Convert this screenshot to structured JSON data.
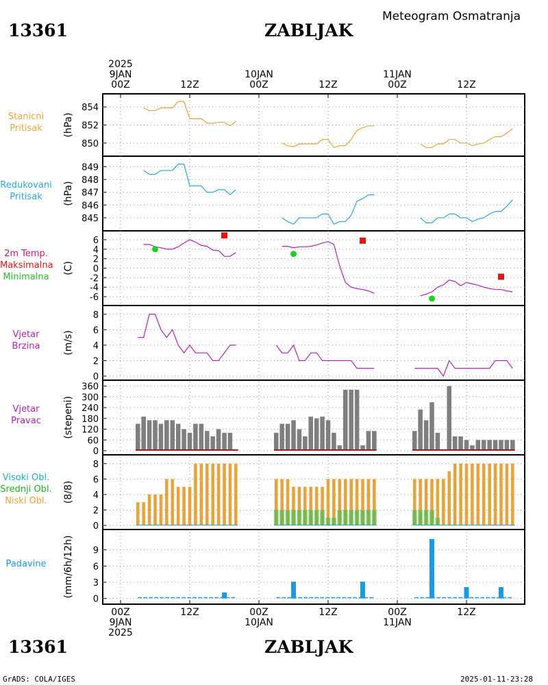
{
  "header": {
    "station_id": "13361",
    "station_name": "ZABLJAK",
    "title": "Meteogram Osmatranja"
  },
  "footer": {
    "station_id": "13361",
    "station_name": "ZABLJAK",
    "source": "GrADS: COLA/IGES",
    "timestamp": "2025-01-11-23:28"
  },
  "time_axis": {
    "top_labels": [
      {
        "t": 0,
        "lines": [
          "2025",
          "9JAN",
          "00Z"
        ]
      },
      {
        "t": 12,
        "lines": [
          "12Z"
        ]
      },
      {
        "t": 24,
        "lines": [
          "10JAN",
          "00Z"
        ]
      },
      {
        "t": 36,
        "lines": [
          "12Z"
        ]
      },
      {
        "t": 48,
        "lines": [
          "11JAN",
          "00Z"
        ]
      },
      {
        "t": 60,
        "lines": [
          "12Z"
        ]
      }
    ],
    "bottom_labels": [
      {
        "t": 0,
        "lines": [
          "00Z",
          "9JAN",
          "2025"
        ]
      },
      {
        "t": 12,
        "lines": [
          "12Z"
        ]
      },
      {
        "t": 24,
        "lines": [
          "00Z",
          "10JAN"
        ]
      },
      {
        "t": 36,
        "lines": [
          "12Z"
        ]
      },
      {
        "t": 48,
        "lines": [
          "00Z",
          "11JAN"
        ]
      },
      {
        "t": 60,
        "lines": [
          "12Z"
        ]
      }
    ]
  },
  "colors": {
    "orange": "#e8a43c",
    "cyan": "#2aa6d6",
    "magenta": "#b01fb0",
    "red": "#e01616",
    "green": "#20d020",
    "gray": "#7f7f7f",
    "blue": "#1a9be0",
    "darkred": "#a02020"
  },
  "panels": [
    {
      "key": "pressure",
      "label_lines": [
        "Stanicni",
        "Pritisak"
      ],
      "label_color": "#e8a43c",
      "unit": "(hPa)"
    },
    {
      "key": "reduced",
      "label_lines": [
        "Redukovani",
        "Pritisak"
      ],
      "label_color": "#2aa6d6",
      "unit": "(hPa)"
    },
    {
      "key": "temp",
      "label_lines": [
        {
          "text": "2m Temp.",
          "color": "#c0187c"
        },
        {
          "text": "Maksimalna",
          "color": "#e01616"
        },
        {
          "text": "Minimalna",
          "color": "#20c020"
        }
      ],
      "unit": "(C)"
    },
    {
      "key": "wind_speed",
      "label_lines": [
        "Vjetar",
        "Brzina"
      ],
      "label_color": "#b01fb0",
      "unit": "(m/s)"
    },
    {
      "key": "wind_dir",
      "label_lines": [
        "Vjetar",
        "Pravac"
      ],
      "label_color": "#b01fb0",
      "unit": "(stepeni)"
    },
    {
      "key": "clouds",
      "label_lines": [
        {
          "text": "Visoki Obl.",
          "color": "#20b0b0"
        },
        {
          "text": "Srednji Obl.",
          "color": "#20b020"
        },
        {
          "text": "Niski Obl.",
          "color": "#e8a43c"
        }
      ],
      "unit": "(8/8)"
    },
    {
      "key": "precip",
      "label_lines": [
        "Padavine"
      ],
      "label_color": "#1a9be0",
      "unit": "(mm/6h/12h)"
    }
  ],
  "chart_data": [
    {
      "type": "line",
      "key": "pressure",
      "ylim": [
        849,
        855
      ],
      "yticks": [
        850,
        852,
        854
      ],
      "segments": [
        {
          "x": [
            4,
            5,
            6,
            7,
            8,
            9,
            10,
            11,
            12,
            13,
            14,
            15,
            16,
            17,
            18,
            19,
            20
          ],
          "y": [
            853.9,
            853.6,
            853.6,
            853.9,
            853.9,
            853.9,
            854.6,
            854.6,
            852.7,
            852.7,
            852.7,
            852.2,
            852.2,
            852.3,
            852.3,
            851.9,
            852.4
          ]
        },
        {
          "x": [
            28,
            29,
            30,
            31,
            32,
            33,
            34,
            35,
            36,
            37,
            38,
            39,
            40,
            41,
            42,
            43,
            44
          ],
          "y": [
            850.0,
            849.7,
            849.6,
            849.9,
            849.9,
            849.9,
            849.9,
            850.4,
            850.4,
            849.5,
            849.7,
            849.7,
            850.4,
            851.4,
            851.7,
            851.9,
            851.9
          ]
        },
        {
          "x": [
            52,
            53,
            54,
            55,
            56,
            57,
            58,
            59,
            60,
            61,
            62,
            63,
            64,
            65,
            66,
            67,
            68
          ],
          "y": [
            849.9,
            849.5,
            849.5,
            849.9,
            849.9,
            850.4,
            850.4,
            850.0,
            850.0,
            849.7,
            849.9,
            850.0,
            850.4,
            850.7,
            850.7,
            851.1,
            851.6
          ]
        }
      ]
    },
    {
      "type": "line",
      "key": "reduced",
      "ylim": [
        844.3,
        849.5
      ],
      "yticks": [
        845,
        846,
        847,
        848,
        849
      ],
      "segments": [
        {
          "x": [
            4,
            5,
            6,
            7,
            8,
            9,
            10,
            11,
            12,
            13,
            14,
            15,
            16,
            17,
            18,
            19,
            20
          ],
          "y": [
            848.7,
            848.4,
            848.4,
            848.7,
            848.7,
            848.7,
            849.2,
            849.2,
            847.5,
            847.5,
            847.5,
            847.0,
            847.0,
            847.2,
            847.2,
            846.8,
            847.2
          ]
        },
        {
          "x": [
            28,
            29,
            30,
            31,
            32,
            33,
            34,
            35,
            36,
            37,
            38,
            39,
            40,
            41,
            42,
            43,
            44
          ],
          "y": [
            845.0,
            844.7,
            844.5,
            845.0,
            845.0,
            845.0,
            845.0,
            845.3,
            845.3,
            844.5,
            844.7,
            844.7,
            845.2,
            846.3,
            846.5,
            846.8,
            846.8
          ]
        },
        {
          "x": [
            52,
            53,
            54,
            55,
            56,
            57,
            58,
            59,
            60,
            61,
            62,
            63,
            64,
            65,
            66,
            67,
            68
          ],
          "y": [
            845.0,
            844.6,
            844.6,
            845.0,
            845.0,
            845.3,
            845.3,
            845.0,
            845.0,
            844.7,
            844.9,
            845.0,
            845.3,
            845.5,
            845.5,
            845.9,
            846.4
          ]
        }
      ]
    },
    {
      "type": "line",
      "key": "temp",
      "ylim": [
        -7,
        7
      ],
      "yticks": [
        6,
        4,
        2,
        0,
        -2,
        -4,
        -6
      ],
      "series": [
        {
          "name": "2m Temp.",
          "segments": [
            {
              "x": [
                4,
                5,
                6,
                7,
                8,
                9,
                10,
                11,
                12,
                13,
                14,
                15,
                16,
                17,
                18,
                19,
                20
              ],
              "y": [
                5.0,
                5.0,
                4.5,
                4.3,
                4.0,
                4.0,
                4.5,
                5.3,
                6.0,
                5.5,
                4.8,
                4.6,
                3.8,
                3.7,
                2.5,
                2.5,
                3.3
              ]
            },
            {
              "x": [
                28,
                29,
                30,
                31,
                32,
                33,
                34,
                35,
                36,
                37,
                38,
                39,
                40,
                41,
                42,
                43,
                44
              ],
              "y": [
                4.6,
                4.6,
                4.3,
                4.5,
                4.5,
                4.6,
                4.9,
                5.3,
                5.6,
                5.0,
                0.5,
                -3.0,
                -4.0,
                -4.3,
                -4.5,
                -4.8,
                -5.3
              ]
            },
            {
              "x": [
                52,
                53,
                54,
                55,
                56,
                57,
                58,
                59,
                60,
                61,
                62,
                63,
                64,
                65,
                66,
                67,
                68
              ],
              "y": [
                -5.8,
                -5.5,
                -5.0,
                -4.0,
                -3.5,
                -2.5,
                -2.8,
                -3.7,
                -3.0,
                -3.3,
                -3.6,
                -4.0,
                -4.3,
                -4.5,
                -4.5,
                -4.8,
                -5.0
              ]
            }
          ]
        },
        {
          "name": "Maksimalna",
          "marker": "square",
          "x": [
            18,
            42,
            66
          ],
          "y": [
            6.9,
            5.8,
            -1.8
          ]
        },
        {
          "name": "Minimalna",
          "marker": "circle",
          "x": [
            6,
            30,
            54
          ],
          "y": [
            4.0,
            3.0,
            -6.4
          ]
        }
      ]
    },
    {
      "type": "line",
      "key": "wind_speed",
      "ylim": [
        0,
        8.6
      ],
      "yticks": [
        0,
        2,
        4,
        6,
        8
      ],
      "segments": [
        {
          "x": [
            3,
            4,
            5,
            6,
            7,
            8,
            9,
            10,
            11,
            12,
            13,
            14,
            15,
            16,
            17,
            18,
            19,
            20
          ],
          "y": [
            5,
            5,
            8,
            8,
            6,
            5,
            6,
            4,
            3,
            4,
            3,
            3,
            3,
            2,
            2,
            3,
            4,
            4
          ]
        },
        {
          "x": [
            27,
            28,
            29,
            30,
            31,
            32,
            33,
            34,
            35,
            36,
            37,
            38,
            39,
            40,
            41,
            42,
            43,
            44
          ],
          "y": [
            4,
            3,
            3,
            4,
            2,
            2,
            3,
            3,
            2,
            2,
            2,
            2,
            2,
            2,
            1,
            1,
            1,
            1
          ]
        },
        {
          "x": [
            51,
            52,
            53,
            54,
            55,
            56,
            57,
            58,
            59,
            60,
            61,
            62,
            63,
            64,
            65,
            66,
            67,
            68
          ],
          "y": [
            1,
            1,
            1,
            1,
            1,
            0,
            2,
            1,
            1,
            1,
            1,
            1,
            1,
            1,
            2,
            2,
            2,
            1
          ]
        }
      ]
    },
    {
      "type": "bar",
      "key": "wind_dir",
      "ylim": [
        0,
        370
      ],
      "yticks": [
        0,
        60,
        120,
        180,
        240,
        300,
        360
      ],
      "x": [
        3,
        4,
        5,
        6,
        7,
        8,
        9,
        10,
        11,
        12,
        13,
        14,
        15,
        16,
        17,
        18,
        19,
        20,
        27,
        28,
        29,
        30,
        31,
        32,
        33,
        34,
        35,
        36,
        37,
        38,
        39,
        40,
        41,
        42,
        43,
        44,
        51,
        52,
        53,
        54,
        55,
        56,
        57,
        58,
        59,
        60,
        61,
        62,
        63,
        64,
        65,
        66,
        67,
        68
      ],
      "values": [
        150,
        190,
        170,
        170,
        150,
        170,
        170,
        150,
        120,
        100,
        150,
        150,
        110,
        80,
        120,
        100,
        100,
        0,
        100,
        150,
        150,
        170,
        120,
        80,
        190,
        180,
        190,
        170,
        100,
        30,
        340,
        340,
        340,
        30,
        110,
        110,
        110,
        230,
        170,
        270,
        100,
        0,
        360,
        80,
        80,
        60,
        30,
        60,
        60,
        60,
        60,
        60,
        60,
        60
      ]
    },
    {
      "type": "bar",
      "key": "clouds",
      "ylim": [
        0,
        8.6
      ],
      "yticks": [
        0,
        2,
        4,
        6,
        8
      ],
      "x": [
        3,
        4,
        5,
        6,
        7,
        8,
        9,
        10,
        11,
        12,
        13,
        14,
        15,
        16,
        17,
        18,
        19,
        20,
        27,
        28,
        29,
        30,
        31,
        32,
        33,
        34,
        35,
        36,
        37,
        38,
        39,
        40,
        41,
        42,
        43,
        44,
        51,
        52,
        53,
        54,
        55,
        56,
        57,
        58,
        59,
        60,
        61,
        62,
        63,
        64,
        65,
        66,
        67,
        68
      ],
      "series": [
        {
          "name": "Niski Obl.",
          "values": [
            3,
            3,
            4,
            4,
            4,
            6,
            6,
            5,
            5,
            5,
            8,
            8,
            8,
            8,
            8,
            8,
            8,
            8,
            6,
            6,
            6,
            5,
            5,
            5,
            5,
            5,
            5,
            6,
            6,
            6,
            6,
            6,
            6,
            6,
            6,
            6,
            6,
            6,
            6,
            6,
            6,
            6,
            7,
            8,
            8,
            8,
            8,
            8,
            8,
            8,
            8,
            8,
            8,
            8
          ]
        },
        {
          "name": "Srednji Obl.",
          "values": [
            0,
            0,
            0,
            0,
            0,
            0,
            0,
            0,
            0,
            0,
            0,
            0,
            0,
            0,
            0,
            0,
            0,
            0,
            2,
            2,
            2,
            2,
            2,
            2,
            2,
            2,
            2,
            1,
            1,
            2,
            2,
            2,
            2,
            2,
            2,
            2,
            2,
            2,
            2,
            2,
            1,
            0,
            0,
            0,
            0,
            0,
            0,
            0,
            0,
            0,
            0,
            0,
            0,
            0
          ]
        },
        {
          "name": "Visoki Obl.",
          "values": [
            0,
            0,
            0,
            0,
            0,
            0,
            0,
            0,
            0,
            0,
            0,
            0,
            0,
            0,
            0,
            0,
            0,
            0,
            0,
            0,
            0,
            0,
            0,
            0,
            0,
            0,
            0,
            0,
            0,
            0,
            0,
            0,
            0,
            0,
            0,
            0,
            0,
            0,
            0,
            0,
            0,
            0,
            0,
            0,
            0,
            0,
            0,
            0,
            0,
            0,
            0,
            0,
            0,
            0
          ]
        }
      ]
    },
    {
      "type": "bar",
      "key": "precip",
      "ylim": [
        -0.3,
        12
      ],
      "yticks": [
        0,
        3,
        6,
        9
      ],
      "x": [
        18,
        30,
        42,
        54,
        60,
        66
      ],
      "values": [
        1.1,
        3.1,
        3.1,
        11.0,
        2.1,
        2.1
      ],
      "baseline": {
        "x": [
          [
            3,
            20
          ],
          [
            27,
            44
          ],
          [
            51,
            68
          ]
        ],
        "y": 0.15
      }
    }
  ]
}
